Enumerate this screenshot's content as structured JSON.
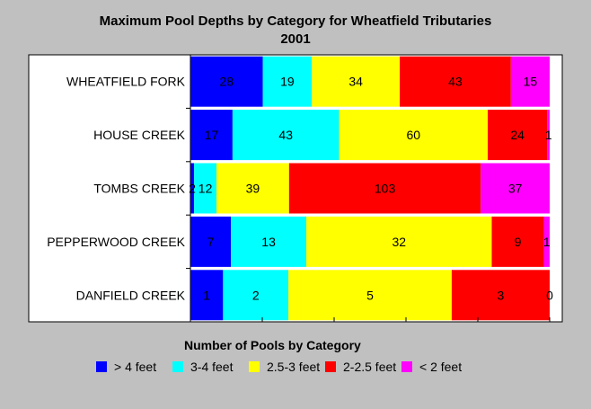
{
  "chart_data": {
    "type": "bar",
    "orientation": "horizontal",
    "stacked": "percent",
    "title_line1": "Maximum Pool Depths by Category for  Wheatfield Tributaries",
    "title_line2": "2001",
    "categories": [
      "WHEATFIELD FORK",
      "HOUSE CREEK",
      "TOMBS CREEK",
      "PEPPERWOOD CREEK",
      "DANFIELD CREEK"
    ],
    "legend_title": "Number of Pools by Category",
    "legend_placement": "bottom",
    "series": [
      {
        "name": "> 4 feet",
        "color": "#0000ff",
        "values": [
          28,
          17,
          2,
          7,
          1
        ]
      },
      {
        "name": "3-4 feet",
        "color": "#00ffff",
        "values": [
          19,
          43,
          12,
          13,
          2
        ]
      },
      {
        "name": "2.5-3 feet",
        "color": "#ffff00",
        "values": [
          34,
          60,
          39,
          32,
          5
        ]
      },
      {
        "name": "2-2.5 feet",
        "color": "#ff0000",
        "values": [
          43,
          24,
          103,
          9,
          3
        ]
      },
      {
        "name": "< 2 feet",
        "color": "#ff00ff",
        "values": [
          15,
          1,
          37,
          1,
          0
        ]
      }
    ],
    "xlim": [
      0,
      1
    ],
    "grid": false
  }
}
